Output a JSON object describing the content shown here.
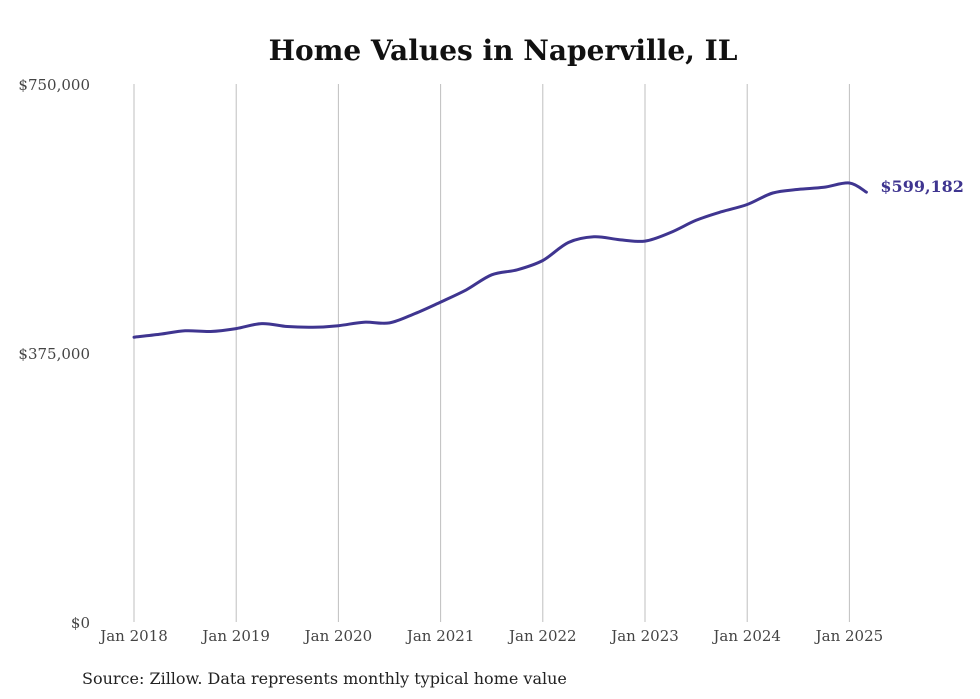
{
  "chart_data": {
    "type": "line",
    "title": "Home Values in Naperville, IL",
    "xlabel": "",
    "ylabel": "",
    "ylim": [
      0,
      750000
    ],
    "y_ticks": [
      "$750,000",
      "$375,000",
      "$0"
    ],
    "x_ticks": [
      "Jan 2018",
      "Jan 2019",
      "Jan 2020",
      "Jan 2021",
      "Jan 2022",
      "Jan 2023",
      "Jan 2024",
      "Jan 2025"
    ],
    "grid": "vertical",
    "line_color": "#3f3590",
    "series": [
      {
        "x": [
          "2018-01",
          "2018-04",
          "2018-07",
          "2018-10",
          "2019-01",
          "2019-04",
          "2019-07",
          "2019-10",
          "2020-01",
          "2020-04",
          "2020-07",
          "2020-10",
          "2021-01",
          "2021-04",
          "2021-07",
          "2021-10",
          "2022-01",
          "2022-04",
          "2022-07",
          "2022-10",
          "2023-01",
          "2023-04",
          "2023-07",
          "2023-10",
          "2024-01",
          "2024-04",
          "2024-07",
          "2024-10",
          "2025-01",
          "2025-03"
        ],
        "values": [
          397000,
          401000,
          406000,
          405000,
          409000,
          416000,
          412000,
          411000,
          413000,
          418000,
          417000,
          430000,
          446000,
          463000,
          484000,
          491000,
          504000,
          529000,
          537000,
          533000,
          531000,
          543000,
          560000,
          572000,
          582000,
          598000,
          603000,
          606000,
          612000,
          599182
        ]
      }
    ],
    "end_label": "$599,182"
  },
  "footer": {
    "source": "Source: Zillow. Data represents monthly typical home value"
  }
}
